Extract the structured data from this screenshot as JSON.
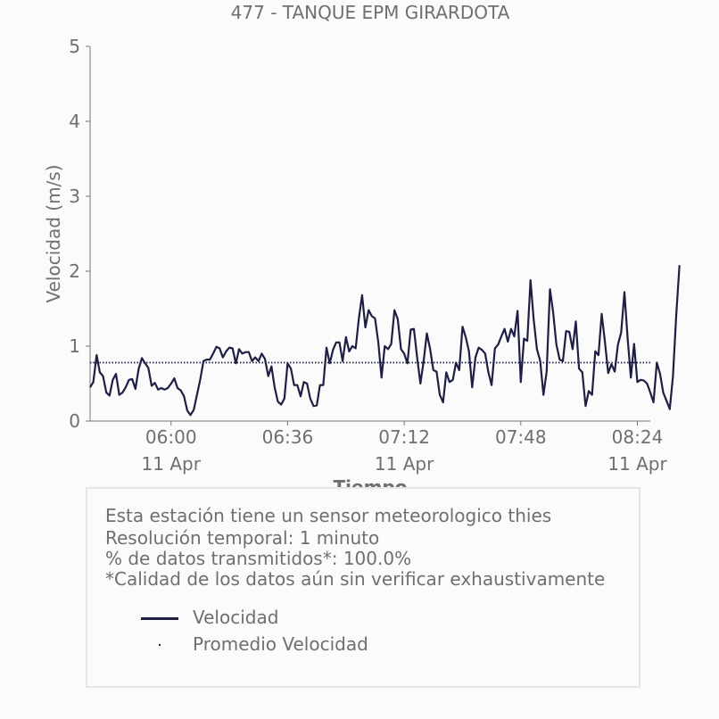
{
  "chart_data": {
    "type": "line",
    "title": "477 - TANQUE EPM GIRARDOTA",
    "xlabel": "Tiempo",
    "ylabel": "Velocidad (m/s)",
    "ylim": [
      0,
      5
    ],
    "yticks": [
      "0",
      "1",
      "2",
      "3",
      "4",
      "5"
    ],
    "xlim": [
      "05:35",
      "08:28"
    ],
    "xticks": [
      {
        "time": "06:00",
        "line1": "06:00",
        "line2": "11 Apr"
      },
      {
        "time": "06:36",
        "line1": "06:36",
        "line2": ""
      },
      {
        "time": "07:12",
        "line1": "07:12",
        "line2": "11 Apr"
      },
      {
        "time": "07:48",
        "line1": "07:48",
        "line2": ""
      },
      {
        "time": "08:24",
        "line1": "08:24",
        "line2": "11 Apr"
      }
    ],
    "grid": false,
    "x_start": "05:35",
    "x_step_minutes": 1,
    "series": [
      {
        "name": "Velocidad",
        "style": "solid",
        "color": "#1e1f44",
        "values": [
          0.45,
          0.52,
          0.88,
          0.65,
          0.6,
          0.38,
          0.34,
          0.55,
          0.63,
          0.35,
          0.38,
          0.45,
          0.55,
          0.56,
          0.43,
          0.7,
          0.84,
          0.77,
          0.71,
          0.47,
          0.51,
          0.42,
          0.44,
          0.42,
          0.44,
          0.5,
          0.57,
          0.44,
          0.41,
          0.33,
          0.14,
          0.08,
          0.15,
          0.35,
          0.55,
          0.8,
          0.82,
          0.82,
          0.9,
          0.99,
          0.97,
          0.85,
          0.93,
          0.98,
          0.97,
          0.77,
          0.96,
          0.9,
          0.92,
          0.92,
          0.8,
          0.85,
          0.8,
          0.9,
          0.83,
          0.6,
          0.73,
          0.45,
          0.26,
          0.22,
          0.3,
          0.77,
          0.7,
          0.48,
          0.48,
          0.33,
          0.52,
          0.5,
          0.3,
          0.2,
          0.21,
          0.48,
          0.48,
          0.98,
          0.77,
          0.95,
          1.05,
          1.05,
          0.8,
          1.12,
          0.93,
          1.0,
          0.97,
          1.37,
          1.68,
          1.25,
          1.48,
          1.4,
          1.37,
          1.05,
          0.58,
          1.0,
          0.96,
          1.03,
          1.48,
          1.36,
          0.96,
          0.9,
          0.77,
          1.22,
          1.23,
          0.85,
          0.5,
          0.8,
          1.17,
          0.96,
          0.68,
          0.66,
          0.35,
          0.25,
          0.65,
          0.52,
          0.55,
          0.78,
          0.68,
          1.26,
          1.12,
          0.93,
          0.45,
          0.85,
          0.98,
          0.95,
          0.9,
          0.65,
          0.48,
          0.97,
          1.02,
          1.13,
          1.23,
          1.06,
          1.23,
          1.13,
          1.47,
          0.52,
          1.1,
          1.07,
          1.88,
          1.35,
          0.96,
          0.8,
          0.35,
          0.66,
          1.76,
          1.45,
          1.02,
          0.82,
          0.8,
          1.2,
          1.19,
          0.96,
          1.33,
          0.7,
          0.65,
          0.2,
          0.4,
          0.35,
          0.93,
          0.88,
          1.43,
          1.05,
          0.64,
          0.76,
          0.66,
          1.02,
          1.18,
          1.72,
          1.1,
          0.58,
          1.03,
          0.52,
          0.55,
          0.54,
          0.5,
          0.38,
          0.25,
          0.78,
          0.63,
          0.38,
          0.27,
          0.16,
          0.6,
          1.4,
          2.08
        ]
      },
      {
        "name": "Promedio Velocidad",
        "style": "dotted",
        "color": "#1e1f44",
        "values": [
          0.78,
          0.78
        ]
      }
    ]
  },
  "notes": [
    "Esta estación tiene un sensor meteorologico thies",
    "Resolución temporal: 1 minuto",
    "% de datos transmitidos*: 100.0%",
    "*Calidad de los datos aún sin verificar exhaustivamente"
  ],
  "legend": {
    "items": [
      {
        "label": "Velocidad",
        "marker": "line"
      },
      {
        "label": "Promedio Velocidad",
        "marker": "dot"
      }
    ]
  },
  "colors": {
    "series": "#1e1f44",
    "text": "#6f6f6f",
    "axis": "#777777",
    "background": "#fbfbfb",
    "legend_border": "#e6e6e6"
  }
}
